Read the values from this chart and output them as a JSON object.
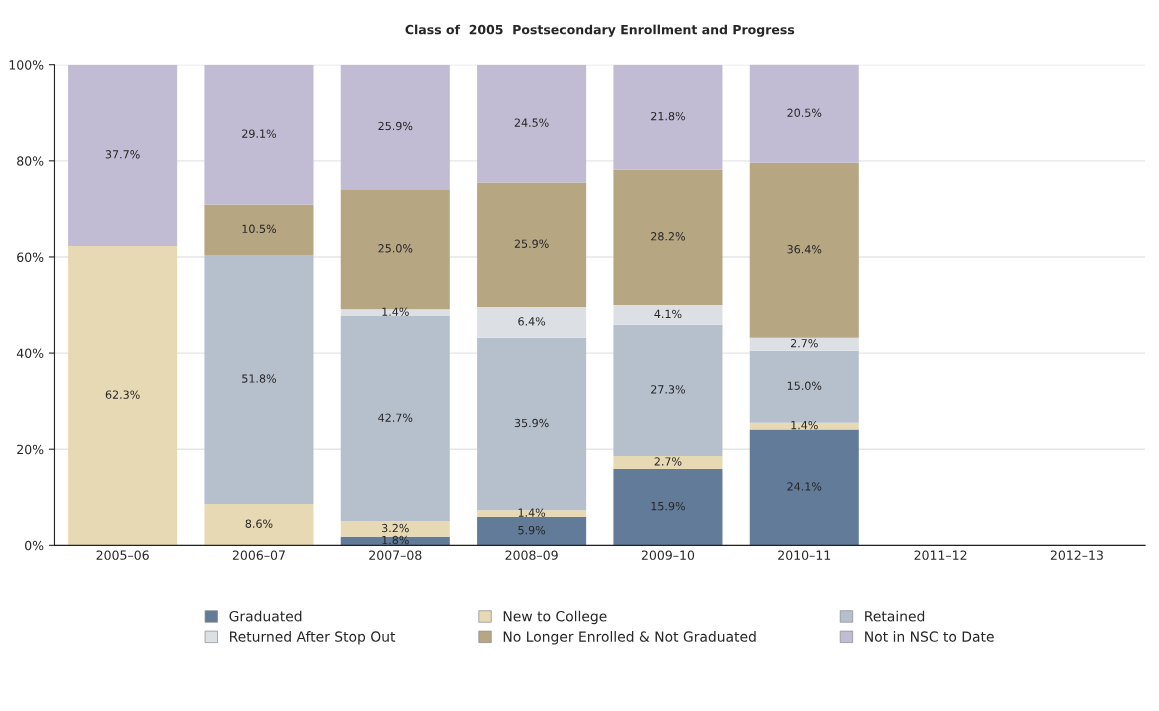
{
  "chart_data": {
    "type": "bar",
    "stacked": true,
    "title": "Class of  2005  Postsecondary Enrollment and Progress",
    "categories": [
      "2005–06",
      "2006–07",
      "2007–08",
      "2008–09",
      "2009–10",
      "2010–11",
      "2011–12",
      "2012–13"
    ],
    "series": [
      {
        "name": "Graduated",
        "color": "#627b98",
        "values": [
          null,
          null,
          1.8,
          5.9,
          15.9,
          24.1,
          null,
          null
        ],
        "value_labels": [
          null,
          null,
          "1.8%",
          "5.9%",
          "15.9%",
          "24.1%",
          null,
          null
        ]
      },
      {
        "name": "New to College",
        "color": "#e8d9b5",
        "values": [
          62.3,
          8.6,
          3.2,
          1.4,
          2.7,
          1.4,
          null,
          null
        ],
        "value_labels": [
          "62.3%",
          "8.6%",
          "3.2%",
          "1.4%",
          "2.7%",
          "1.4%",
          null,
          null
        ]
      },
      {
        "name": "Retained",
        "color": "#b6c0cd",
        "values": [
          null,
          51.8,
          42.7,
          35.9,
          27.3,
          15.0,
          null,
          null
        ],
        "value_labels": [
          null,
          "51.8%",
          "42.7%",
          "35.9%",
          "27.3%",
          "15.0%",
          null,
          null
        ]
      },
      {
        "name": "Returned After Stop Out",
        "color": "#dce0e4",
        "values": [
          null,
          null,
          1.4,
          6.4,
          4.1,
          2.7,
          null,
          null
        ],
        "value_labels": [
          null,
          null,
          "1.4%",
          "6.4%",
          "4.1%",
          "2.7%",
          null,
          null
        ]
      },
      {
        "name": "No Longer Enrolled & Not Graduated",
        "color": "#b7a682",
        "values": [
          null,
          10.5,
          25.0,
          25.9,
          28.2,
          36.4,
          null,
          null
        ],
        "value_labels": [
          null,
          "10.5%",
          "25.0%",
          "25.9%",
          "28.2%",
          "36.4%",
          null,
          null
        ]
      },
      {
        "name": "Not in NSC to Date",
        "color": "#c1bcd3",
        "values": [
          37.7,
          29.1,
          25.9,
          24.5,
          21.8,
          20.5,
          null,
          null
        ],
        "value_labels": [
          "37.7%",
          "29.1%",
          "25.9%",
          "24.5%",
          "21.8%",
          "20.5%",
          null,
          null
        ]
      }
    ],
    "ylim": [
      0,
      100
    ],
    "yticks": [
      {
        "value": 0,
        "label": "0%"
      },
      {
        "value": 20,
        "label": "20%"
      },
      {
        "value": 40,
        "label": "40%"
      },
      {
        "value": 60,
        "label": "60%"
      },
      {
        "value": 80,
        "label": "80%"
      },
      {
        "value": 100,
        "label": "100%"
      }
    ],
    "grid": "y",
    "legend": "bottom"
  }
}
